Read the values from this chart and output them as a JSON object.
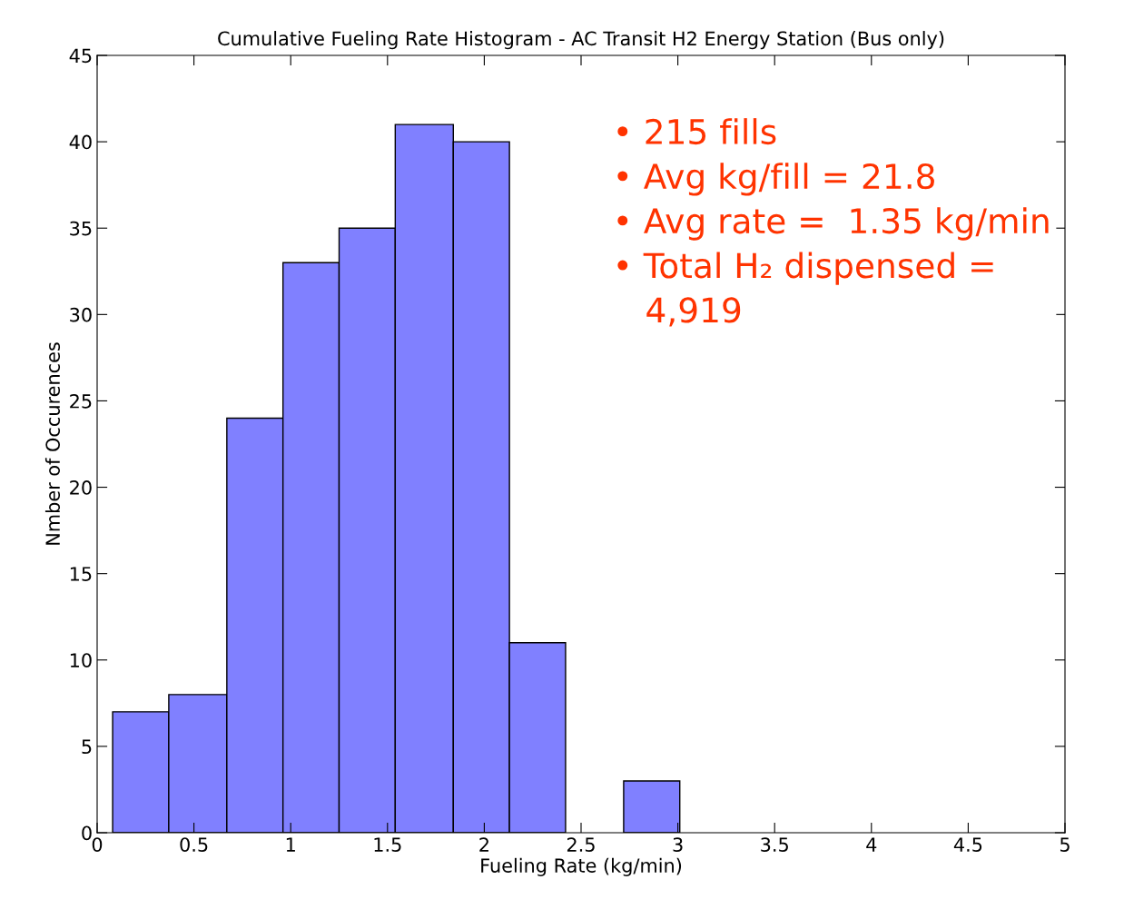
{
  "chart_data": {
    "type": "histogram",
    "title": "Cumulative Fueling Rate Histogram - AC Transit H2 Energy Station (Bus only)",
    "xlabel": "Fueling Rate (kg/min)",
    "ylabel": "Nmber of Occurences",
    "bins": [
      0.08,
      0.37,
      0.67,
      0.96,
      1.25,
      1.54,
      1.84,
      2.13,
      2.42,
      2.72,
      3.01
    ],
    "values": [
      7,
      8,
      24,
      33,
      35,
      41,
      40,
      11,
      0,
      3
    ],
    "color": "#8080ff",
    "xlim": [
      0,
      5
    ],
    "xticks": [
      0,
      0.5,
      1,
      1.5,
      2,
      2.5,
      3,
      3.5,
      4,
      4.5,
      5
    ],
    "ylim": [
      0,
      45
    ],
    "yticks": [
      0,
      5,
      10,
      15,
      20,
      25,
      30,
      35,
      40,
      45
    ],
    "grid": false,
    "annotations": [
      "• 215 fills",
      "• Avg kg/fill = 21.8",
      "• Avg rate =  1.35 kg/min",
      "• Total H₂ dispensed =\n   4,919"
    ]
  }
}
